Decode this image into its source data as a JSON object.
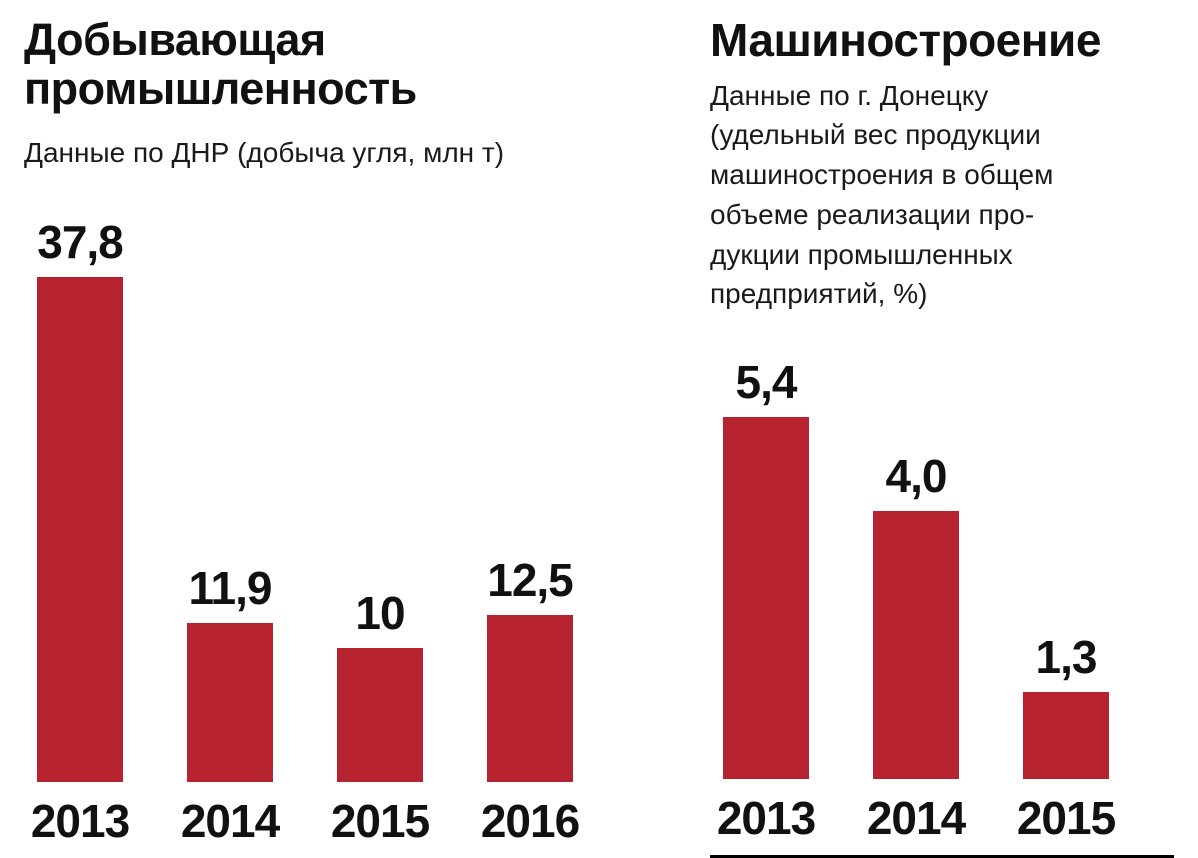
{
  "page": {
    "background": "#ffffff"
  },
  "colors": {
    "bar": "#b6232f",
    "text": "#111111",
    "divider": "#000000"
  },
  "chart_data": [
    {
      "type": "bar",
      "title": "Добывающая\nпромышленность",
      "subtitle": "Данные по ДНР (добыча угля, млн т)",
      "categories": [
        "2013",
        "2014",
        "2015",
        "2016"
      ],
      "values": [
        37.8,
        11.9,
        10,
        12.5
      ],
      "value_labels": [
        "37,8",
        "11,9",
        "10",
        "12,5"
      ],
      "unit": "млн т",
      "ylim": [
        0,
        37.8
      ],
      "grid": false,
      "legend": "none"
    },
    {
      "type": "bar",
      "title": "Машиностроение",
      "subtitle": "Данные по г. Донецку\n(удельный вес продукции\nмашиностроения в общем\nобъеме реализации про-\nдукции промышленных\nпредприятий, %)",
      "categories": [
        "2013",
        "2014",
        "2015"
      ],
      "values": [
        5.4,
        4.0,
        1.3
      ],
      "value_labels": [
        "5,4",
        "4,0",
        "1,3"
      ],
      "unit": "%",
      "ylim": [
        0,
        5.4
      ],
      "grid": false,
      "legend": "none"
    }
  ]
}
